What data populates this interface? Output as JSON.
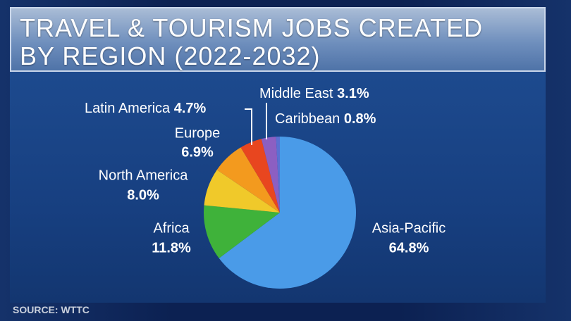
{
  "chart_data": {
    "type": "pie",
    "title": "TRAVEL & TOURISM JOBS CREATED BY REGION (2022-2032)",
    "source": "SOURCE: WTTC",
    "categories": [
      "Asia-Pacific",
      "Africa",
      "North America",
      "Europe",
      "Latin America",
      "Middle East",
      "Caribbean"
    ],
    "values": [
      64.8,
      11.8,
      8.0,
      6.9,
      4.7,
      3.1,
      0.8
    ],
    "value_labels": [
      "64.8%",
      "11.8%",
      "8.0%",
      "6.9%",
      "4.7%",
      "3.1%",
      "0.8%"
    ],
    "colors": [
      "#4a9be8",
      "#3fb23a",
      "#f0c92a",
      "#f39a1e",
      "#e8461f",
      "#8c5fc2",
      "#5b70d2"
    ]
  }
}
